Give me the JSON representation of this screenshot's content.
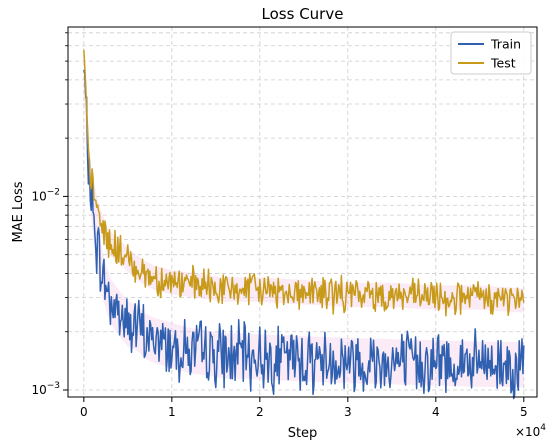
{
  "chart_data": {
    "type": "line",
    "title": "Loss Curve",
    "xlabel": "Step",
    "ylabel": "MAE Loss",
    "x_multiplier_label": "×10",
    "x_multiplier_exponent": "4",
    "y_scale": "log",
    "xlim": [
      -1800,
      51500
    ],
    "ylim": [
      0.00092,
      0.075
    ],
    "x_ticks": [
      0,
      10000,
      20000,
      30000,
      40000,
      50000
    ],
    "x_tick_labels": [
      "0",
      "1",
      "2",
      "3",
      "4",
      "5"
    ],
    "y_major_ticks": [
      0.001,
      0.01
    ],
    "y_major_tick_base": "10",
    "y_major_tick_exponents": [
      "−3",
      "−2"
    ],
    "grid": true,
    "legend_position": "top-right",
    "series": [
      {
        "name": "Train",
        "color": "#3060b0",
        "x": [
          0,
          500,
          1000,
          1500,
          2000,
          2500,
          3000,
          4000,
          5000,
          6000,
          7000,
          8000,
          10000,
          12000,
          14000,
          16000,
          18000,
          20000,
          25000,
          30000,
          35000,
          40000,
          45000,
          50000
        ],
        "values": [
          0.045,
          0.0155,
          0.0085,
          0.0055,
          0.0042,
          0.0034,
          0.0029,
          0.0025,
          0.0022,
          0.0021,
          0.0019,
          0.0018,
          0.0017,
          0.0016,
          0.00155,
          0.0015,
          0.0015,
          0.00148,
          0.00145,
          0.00142,
          0.0014,
          0.00138,
          0.00136,
          0.00135
        ]
      },
      {
        "name": "Test",
        "color": "#c89a1a",
        "x": [
          0,
          500,
          1000,
          1500,
          2000,
          2500,
          3000,
          4000,
          5000,
          6000,
          7000,
          8000,
          10000,
          12000,
          14000,
          16000,
          18000,
          20000,
          25000,
          30000,
          35000,
          40000,
          45000,
          50000
        ],
        "values": [
          0.055,
          0.016,
          0.011,
          0.0085,
          0.0072,
          0.0063,
          0.0057,
          0.0052,
          0.0047,
          0.0043,
          0.004,
          0.0038,
          0.0036,
          0.0035,
          0.0034,
          0.0033,
          0.0033,
          0.0033,
          0.0032,
          0.0031,
          0.0031,
          0.003,
          0.003,
          0.0029
        ]
      }
    ]
  }
}
